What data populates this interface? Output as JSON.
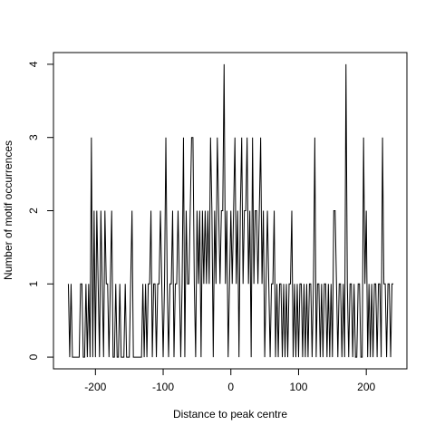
{
  "chart_data": {
    "type": "line",
    "xlabel": "Distance to peak centre",
    "ylabel": "Number of motif occurrences",
    "xlim": [
      -262,
      260
    ],
    "ylim": [
      -0.16,
      4.16
    ],
    "xticks": [
      -200,
      -100,
      0,
      100,
      200
    ],
    "yticks": [
      0,
      1,
      2,
      3,
      4
    ],
    "grid": false,
    "series": [
      {
        "color": "#000000",
        "x": [
          -240,
          -238,
          -236,
          -234,
          -232,
          -230,
          -228,
          -226,
          -224,
          -222,
          -220,
          -218,
          -216,
          -214,
          -212,
          -210,
          -208,
          -206,
          -204,
          -202,
          -200,
          -198,
          -196,
          -194,
          -192,
          -190,
          -188,
          -186,
          -184,
          -182,
          -180,
          -178,
          -176,
          -174,
          -172,
          -170,
          -168,
          -166,
          -164,
          -162,
          -160,
          -158,
          -156,
          -154,
          -152,
          -150,
          -148,
          -146,
          -144,
          -142,
          -140,
          -138,
          -136,
          -134,
          -132,
          -130,
          -128,
          -126,
          -124,
          -122,
          -120,
          -118,
          -116,
          -114,
          -112,
          -110,
          -108,
          -106,
          -104,
          -102,
          -100,
          -98,
          -96,
          -94,
          -92,
          -90,
          -88,
          -86,
          -84,
          -82,
          -80,
          -78,
          -76,
          -74,
          -72,
          -70,
          -68,
          -66,
          -64,
          -62,
          -60,
          -58,
          -56,
          -54,
          -52,
          -50,
          -48,
          -46,
          -44,
          -42,
          -40,
          -38,
          -36,
          -34,
          -32,
          -30,
          -28,
          -26,
          -24,
          -22,
          -20,
          -18,
          -16,
          -14,
          -12,
          -10,
          -8,
          -6,
          -4,
          -2,
          0,
          2,
          4,
          6,
          8,
          10,
          12,
          14,
          16,
          18,
          20,
          22,
          24,
          26,
          28,
          30,
          32,
          34,
          36,
          38,
          40,
          42,
          44,
          46,
          48,
          50,
          52,
          54,
          56,
          58,
          60,
          62,
          64,
          66,
          68,
          70,
          72,
          74,
          76,
          78,
          80,
          82,
          84,
          86,
          88,
          90,
          92,
          94,
          96,
          98,
          100,
          102,
          104,
          106,
          108,
          110,
          112,
          114,
          116,
          118,
          120,
          122,
          124,
          126,
          128,
          130,
          132,
          134,
          136,
          138,
          140,
          142,
          144,
          146,
          148,
          150,
          152,
          154,
          156,
          158,
          160,
          162,
          164,
          166,
          168,
          170,
          172,
          174,
          176,
          178,
          180,
          182,
          184,
          186,
          188,
          190,
          192,
          194,
          196,
          198,
          200,
          202,
          204,
          206,
          208,
          210,
          212,
          214,
          216,
          218,
          220,
          222,
          224,
          226,
          228,
          230,
          232,
          234,
          236,
          238,
          240
        ],
        "values": [
          1,
          0,
          1,
          0,
          0,
          0,
          0,
          0,
          0,
          1,
          1,
          0,
          0,
          1,
          0,
          1,
          0,
          3,
          0,
          2,
          0,
          2,
          1,
          0,
          2,
          1,
          0,
          2,
          1,
          1,
          0,
          1,
          2,
          0,
          0,
          1,
          0,
          0,
          1,
          0,
          0,
          0,
          1,
          0,
          0,
          0,
          1,
          2,
          0,
          0,
          0,
          0,
          0,
          0,
          0,
          1,
          0,
          1,
          0,
          1,
          1,
          2,
          0,
          1,
          1,
          0,
          1,
          1,
          2,
          1,
          0,
          1,
          3,
          1,
          0,
          1,
          1,
          2,
          0,
          1,
          1,
          2,
          1,
          0,
          1,
          3,
          0,
          2,
          1,
          1,
          2,
          3,
          3,
          1,
          0,
          2,
          1,
          2,
          0,
          2,
          1,
          2,
          1,
          2,
          1,
          3,
          2,
          0,
          2,
          1,
          3,
          2,
          1,
          2,
          2,
          4,
          1,
          2,
          0,
          1,
          2,
          1,
          2,
          3,
          1,
          2,
          0,
          2,
          3,
          1,
          2,
          2,
          3,
          1,
          2,
          0,
          3,
          1,
          2,
          2,
          1,
          2,
          3,
          1,
          2,
          0,
          1,
          2,
          1,
          0,
          1,
          1,
          2,
          0,
          1,
          0,
          1,
          1,
          0,
          1,
          0,
          1,
          0,
          1,
          1,
          2,
          0,
          1,
          0,
          1,
          0,
          1,
          1,
          0,
          1,
          0,
          1,
          0,
          1,
          1,
          0,
          1,
          3,
          0,
          1,
          1,
          0,
          1,
          0,
          1,
          1,
          0,
          1,
          0,
          1,
          0,
          2,
          2,
          1,
          0,
          1,
          1,
          0,
          1,
          0,
          4,
          1,
          0,
          1,
          1,
          0,
          1,
          0,
          0,
          1,
          1,
          0,
          0,
          3,
          1,
          2,
          0,
          1,
          0,
          1,
          0,
          1,
          1,
          0,
          1,
          1,
          0,
          3,
          1,
          1,
          0,
          1,
          1,
          0,
          1,
          1
        ]
      }
    ]
  }
}
